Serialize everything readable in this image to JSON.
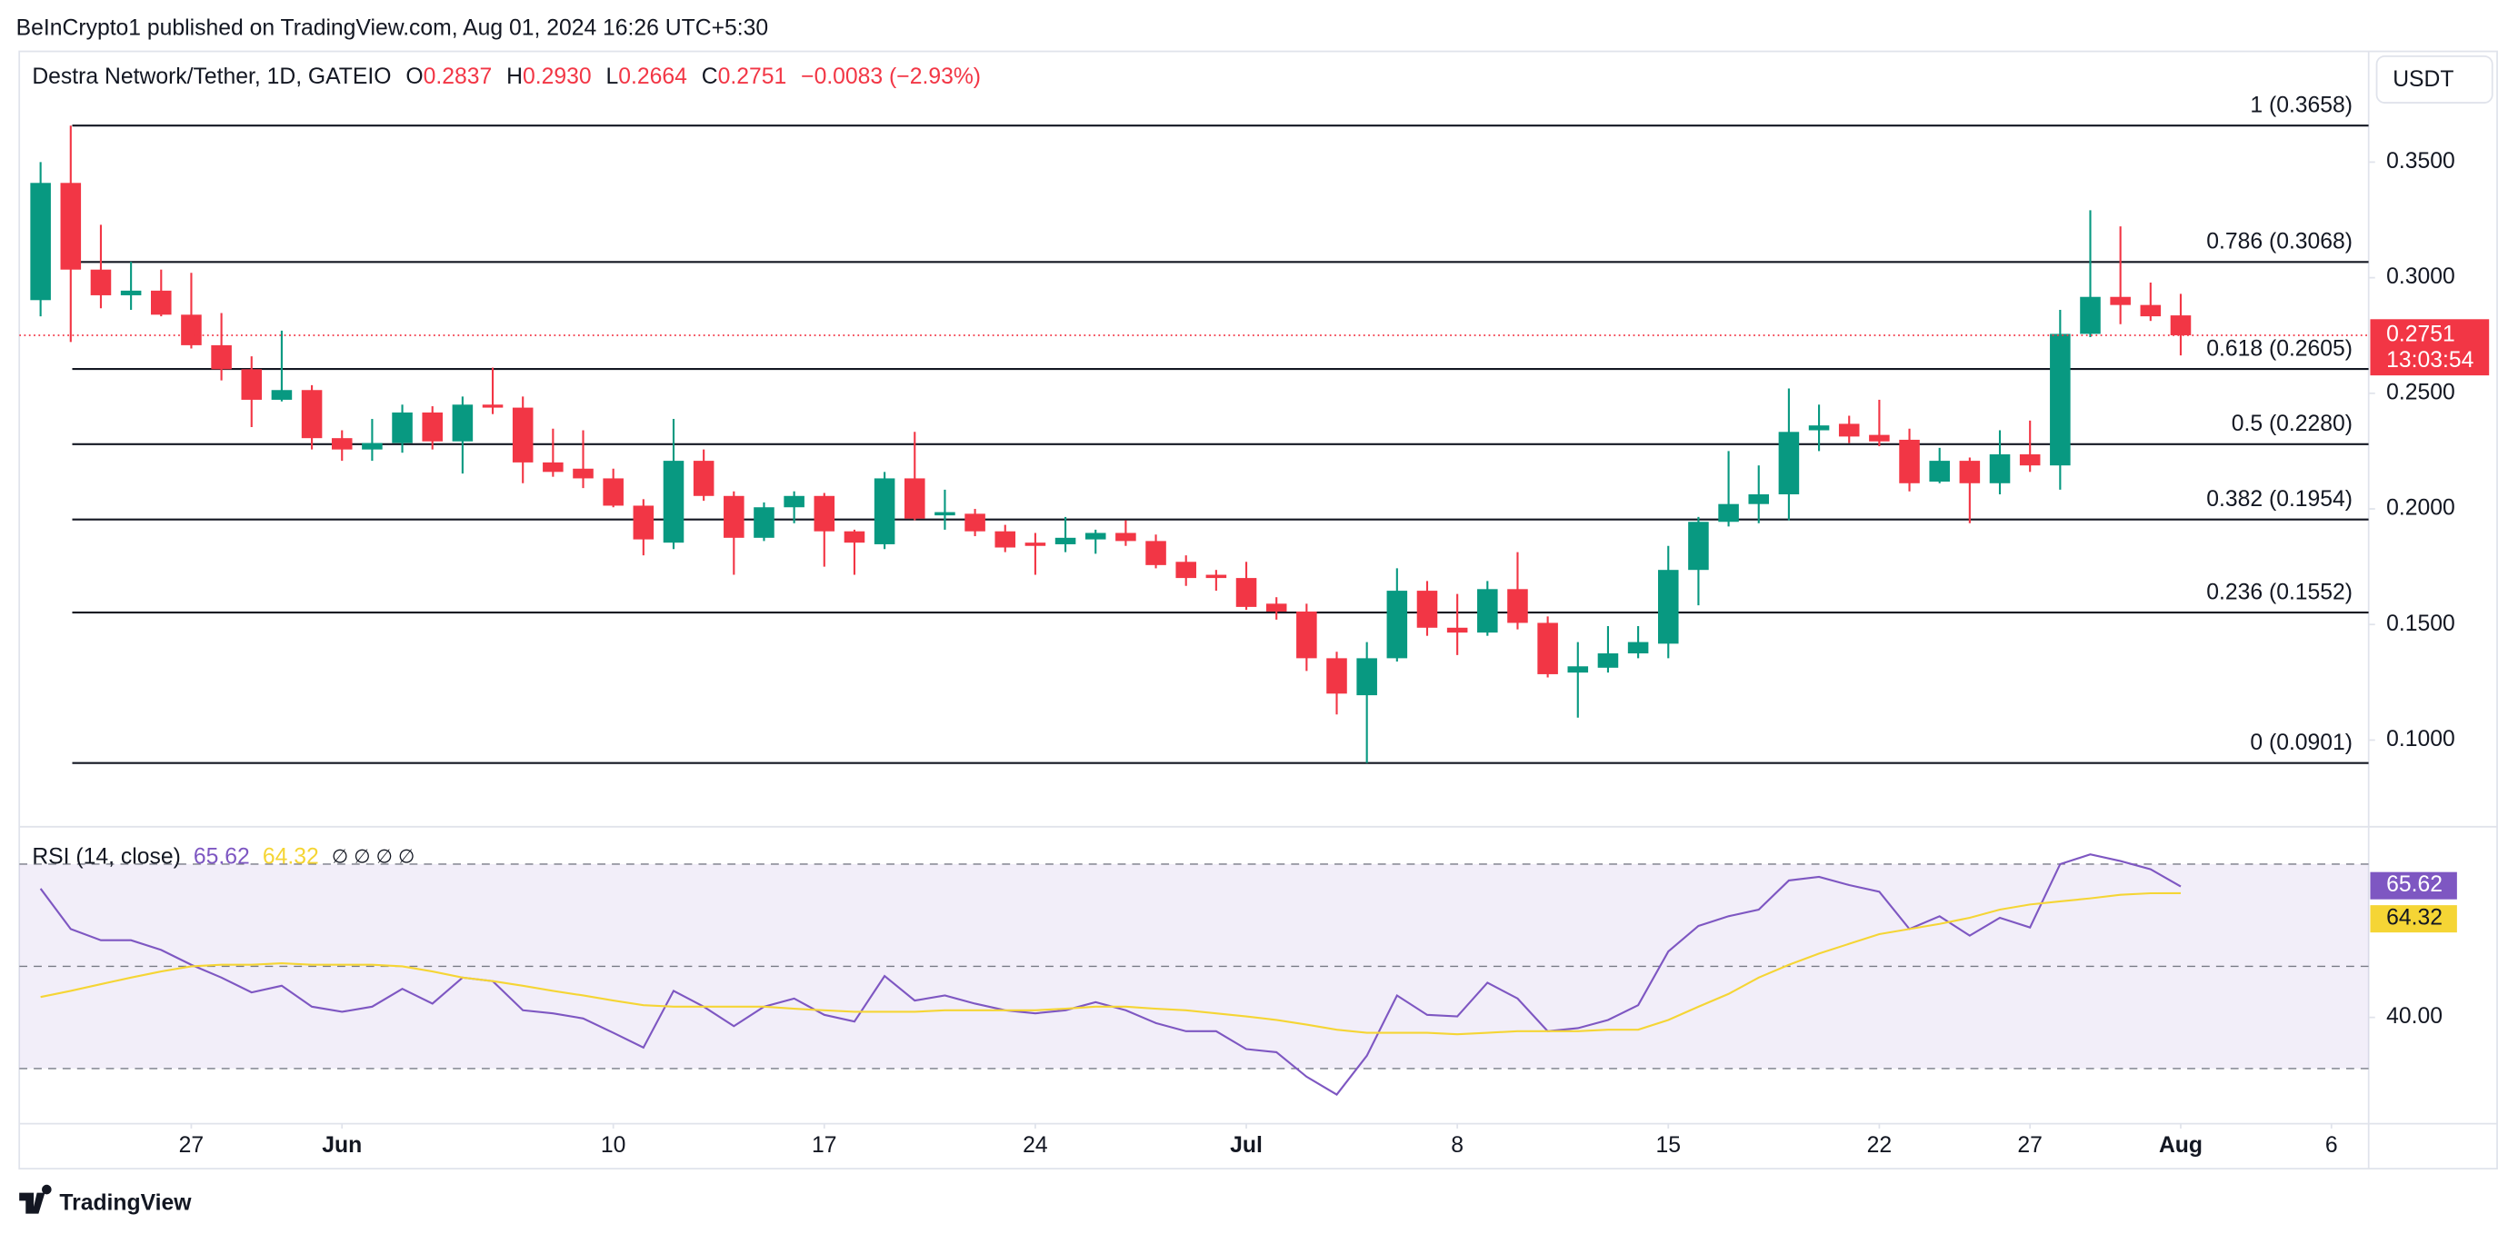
{
  "header": {
    "publisher": "BeInCrypto1 published on TradingView.com, Aug 01, 2024 16:26 UTC+5:30",
    "brand": "TradingView"
  },
  "legend": {
    "symbol": "Destra Network/Tether, 1D, GATEIO",
    "o": "O",
    "open": "0.2837",
    "h": "H",
    "high": "0.2930",
    "l": "L",
    "low": "0.2664",
    "c": "C",
    "close": "0.2751",
    "change": "−0.0083 (−2.93%)",
    "countdown": "13:03:54",
    "currency": "USDT"
  },
  "chart_data": [
    {
      "type": "candlestick",
      "up_color": "#089981",
      "down_color": "#f23645",
      "xlim": [
        "2024-05-21",
        "2024-08-07"
      ],
      "xticks": [
        {
          "value": "2024-05-27",
          "label": "27"
        },
        {
          "value": "2024-06-01",
          "label": "Jun"
        },
        {
          "value": "2024-06-10",
          "label": "10"
        },
        {
          "value": "2024-06-17",
          "label": "17"
        },
        {
          "value": "2024-06-24",
          "label": "24"
        },
        {
          "value": "2024-07-01",
          "label": "Jul"
        },
        {
          "value": "2024-07-08",
          "label": "8"
        },
        {
          "value": "2024-07-15",
          "label": "15"
        },
        {
          "value": "2024-07-22",
          "label": "22"
        },
        {
          "value": "2024-07-27",
          "label": "27"
        },
        {
          "value": "2024-08-01",
          "label": "Aug"
        },
        {
          "value": "2024-08-06",
          "label": "6"
        }
      ],
      "ylim": [
        0.0646,
        0.3979
      ],
      "yticks": [
        {
          "value": 0.1,
          "label": "0.1000"
        },
        {
          "value": 0.15,
          "label": "0.1500"
        },
        {
          "value": 0.2,
          "label": "0.2000"
        },
        {
          "value": 0.25,
          "label": "0.2500"
        },
        {
          "value": 0.3,
          "label": "0.3000"
        },
        {
          "value": 0.35,
          "label": "0.3500"
        }
      ],
      "fib_levels": [
        {
          "label": "1 (0.3658)",
          "value": 0.3658
        },
        {
          "label": "0.786 (0.3068)",
          "value": 0.3068
        },
        {
          "label": "0.618 (0.2605)",
          "value": 0.2605
        },
        {
          "label": "0.5 (0.2280)",
          "value": 0.228
        },
        {
          "label": "0.382 (0.1954)",
          "value": 0.1954
        },
        {
          "label": "0.236 (0.1552)",
          "value": 0.1552
        },
        {
          "label": "0 (0.0901)",
          "value": 0.0901
        }
      ],
      "x": [
        "2024-05-22",
        "2024-05-23",
        "2024-05-24",
        "2024-05-25",
        "2024-05-26",
        "2024-05-27",
        "2024-05-28",
        "2024-05-29",
        "2024-05-30",
        "2024-05-31",
        "2024-06-01",
        "2024-06-02",
        "2024-06-03",
        "2024-06-04",
        "2024-06-05",
        "2024-06-06",
        "2024-06-07",
        "2024-06-08",
        "2024-06-09",
        "2024-06-10",
        "2024-06-11",
        "2024-06-12",
        "2024-06-13",
        "2024-06-14",
        "2024-06-15",
        "2024-06-16",
        "2024-06-17",
        "2024-06-18",
        "2024-06-19",
        "2024-06-20",
        "2024-06-21",
        "2024-06-22",
        "2024-06-23",
        "2024-06-24",
        "2024-06-25",
        "2024-06-26",
        "2024-06-27",
        "2024-06-28",
        "2024-06-29",
        "2024-06-30",
        "2024-07-01",
        "2024-07-02",
        "2024-07-03",
        "2024-07-04",
        "2024-07-05",
        "2024-07-06",
        "2024-07-07",
        "2024-07-08",
        "2024-07-09",
        "2024-07-10",
        "2024-07-11",
        "2024-07-12",
        "2024-07-13",
        "2024-07-14",
        "2024-07-15",
        "2024-07-16",
        "2024-07-17",
        "2024-07-18",
        "2024-07-19",
        "2024-07-20",
        "2024-07-21",
        "2024-07-22",
        "2024-07-23",
        "2024-07-24",
        "2024-07-25",
        "2024-07-26",
        "2024-07-27",
        "2024-07-28",
        "2024-07-29",
        "2024-07-30",
        "2024-07-31",
        "2024-08-01"
      ],
      "open": [
        0.2903,
        0.341,
        0.3035,
        0.2924,
        0.2944,
        0.284,
        0.2708,
        0.2604,
        0.2472,
        0.2514,
        0.2306,
        0.2257,
        0.2285,
        0.2417,
        0.2292,
        0.2451,
        0.2438,
        0.2201,
        0.2174,
        0.2132,
        0.2014,
        0.1854,
        0.2208,
        0.2056,
        0.1875,
        0.2007,
        0.2056,
        0.1903,
        0.1847,
        0.2132,
        0.1972,
        0.1979,
        0.1903,
        0.1854,
        0.1847,
        0.1868,
        0.1896,
        0.1861,
        0.1771,
        0.1715,
        0.1701,
        0.159,
        0.1556,
        0.1354,
        0.1194,
        0.1354,
        0.1646,
        0.1486,
        0.1465,
        0.1653,
        0.1507,
        0.1292,
        0.1313,
        0.1375,
        0.1417,
        0.1736,
        0.1944,
        0.2021,
        0.2063,
        0.234,
        0.2368,
        0.232,
        0.2299,
        0.2118,
        0.2208,
        0.2111,
        0.2236,
        0.2188,
        0.2757,
        0.2917,
        0.2882,
        0.2837
      ],
      "high": [
        0.35,
        0.3658,
        0.3229,
        0.3069,
        0.3035,
        0.3021,
        0.2847,
        0.266,
        0.2771,
        0.2535,
        0.234,
        0.2389,
        0.2451,
        0.2444,
        0.2486,
        0.2611,
        0.2486,
        0.2347,
        0.234,
        0.2174,
        0.2042,
        0.2389,
        0.2257,
        0.2076,
        0.2028,
        0.2076,
        0.2069,
        0.191,
        0.216,
        0.2333,
        0.2083,
        0.2,
        0.1931,
        0.1896,
        0.1965,
        0.191,
        0.1951,
        0.1889,
        0.1799,
        0.1736,
        0.1771,
        0.1618,
        0.159,
        0.1382,
        0.1424,
        0.1743,
        0.1688,
        0.1632,
        0.1688,
        0.1813,
        0.1535,
        0.1424,
        0.1493,
        0.1493,
        0.184,
        0.1965,
        0.225,
        0.2188,
        0.2521,
        0.2451,
        0.2403,
        0.2472,
        0.2347,
        0.2264,
        0.2222,
        0.234,
        0.2382,
        0.2861,
        0.3292,
        0.3222,
        0.2979,
        0.293
      ],
      "low": [
        0.2833,
        0.2722,
        0.2868,
        0.2861,
        0.2833,
        0.2694,
        0.2556,
        0.2354,
        0.2465,
        0.2257,
        0.2208,
        0.2208,
        0.2243,
        0.2257,
        0.2153,
        0.241,
        0.2111,
        0.2139,
        0.209,
        0.2007,
        0.1799,
        0.1826,
        0.2035,
        0.1715,
        0.1861,
        0.1938,
        0.175,
        0.1715,
        0.1826,
        0.1951,
        0.191,
        0.1882,
        0.1813,
        0.1715,
        0.1813,
        0.1806,
        0.184,
        0.1743,
        0.1667,
        0.1646,
        0.1563,
        0.1521,
        0.1299,
        0.1111,
        0.0901,
        0.134,
        0.1451,
        0.1368,
        0.1451,
        0.1479,
        0.1271,
        0.1097,
        0.1292,
        0.1354,
        0.1354,
        0.1583,
        0.1924,
        0.1938,
        0.1951,
        0.225,
        0.2285,
        0.2271,
        0.2076,
        0.2111,
        0.1938,
        0.2063,
        0.216,
        0.2083,
        0.2743,
        0.2799,
        0.2813,
        0.2664
      ],
      "close": [
        0.341,
        0.3035,
        0.2924,
        0.2944,
        0.284,
        0.2708,
        0.2604,
        0.2472,
        0.2514,
        0.2306,
        0.2257,
        0.2285,
        0.2417,
        0.2292,
        0.2451,
        0.2438,
        0.2201,
        0.216,
        0.2132,
        0.2014,
        0.1868,
        0.2208,
        0.2056,
        0.1875,
        0.2007,
        0.2056,
        0.1903,
        0.1854,
        0.2132,
        0.1958,
        0.1986,
        0.1903,
        0.1833,
        0.184,
        0.1875,
        0.1896,
        0.1861,
        0.1757,
        0.1701,
        0.1701,
        0.1576,
        0.1556,
        0.1354,
        0.1201,
        0.1354,
        0.1646,
        0.1486,
        0.1465,
        0.1653,
        0.1507,
        0.1285,
        0.1319,
        0.1375,
        0.1424,
        0.1736,
        0.1944,
        0.2021,
        0.2063,
        0.2333,
        0.2361,
        0.2313,
        0.2292,
        0.2111,
        0.2208,
        0.2111,
        0.2236,
        0.2188,
        0.2757,
        0.2917,
        0.2882,
        0.2833,
        0.2751
      ]
    },
    {
      "type": "line",
      "title": "RSI (14, close)",
      "na": "∅ ∅ ∅ ∅",
      "ylim": [
        19.2,
        77
      ],
      "yticks": [
        {
          "value": 40,
          "label": "40.00"
        }
      ],
      "bands": [
        70,
        50,
        30
      ],
      "band_color": "#7e57c2",
      "series": [
        {
          "name": "RSI",
          "color": "#7e57c2",
          "value_label": "65.62",
          "values": [
            65.2,
            57.3,
            55.1,
            55.1,
            53.2,
            50.3,
            47.8,
            44.9,
            46.2,
            42.1,
            41.1,
            42.1,
            45.6,
            42.7,
            47.8,
            47.1,
            41.4,
            40.8,
            39.8,
            37.0,
            34.1,
            45.2,
            42.1,
            38.3,
            42.1,
            43.7,
            40.5,
            39.2,
            48.1,
            43.3,
            44.3,
            42.7,
            41.4,
            40.8,
            41.4,
            43.0,
            41.4,
            38.9,
            37.3,
            37.3,
            33.8,
            33.2,
            28.4,
            24.9,
            32.5,
            44.3,
            40.5,
            40.2,
            46.8,
            43.7,
            37.3,
            37.9,
            39.5,
            42.4,
            52.9,
            57.9,
            59.8,
            61.1,
            66.8,
            67.5,
            65.9,
            64.6,
            57.3,
            59.8,
            56.0,
            59.5,
            57.6,
            70.0,
            71.9,
            70.6,
            69.0,
            65.62
          ]
        },
        {
          "name": "RSI-based MA",
          "color": "#f5d535",
          "value_label": "64.32",
          "values": [
            44.0,
            45.2,
            46.5,
            47.8,
            49.0,
            50.0,
            50.3,
            50.3,
            50.6,
            50.3,
            50.3,
            50.3,
            50.0,
            49.0,
            47.8,
            47.1,
            46.2,
            45.2,
            44.3,
            43.3,
            42.4,
            42.1,
            42.1,
            42.1,
            42.1,
            41.7,
            41.4,
            41.1,
            41.1,
            41.1,
            41.4,
            41.4,
            41.4,
            41.4,
            41.7,
            42.1,
            42.1,
            41.7,
            41.4,
            40.8,
            40.2,
            39.5,
            38.6,
            37.6,
            37.0,
            37.0,
            37.0,
            36.7,
            37.0,
            37.3,
            37.3,
            37.3,
            37.6,
            37.6,
            39.5,
            42.1,
            44.6,
            47.8,
            50.3,
            52.5,
            54.4,
            56.3,
            57.3,
            58.3,
            59.5,
            61.1,
            62.1,
            62.7,
            63.3,
            64.0,
            64.3,
            64.32
          ]
        }
      ]
    }
  ]
}
